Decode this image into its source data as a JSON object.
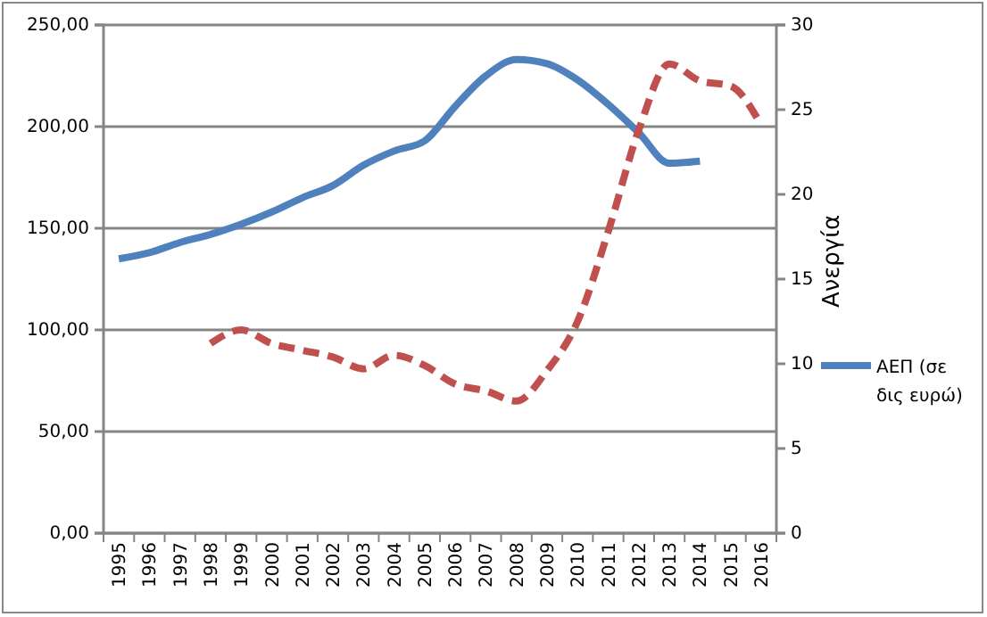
{
  "chart_data": {
    "type": "line",
    "y2label": "Ανεργία",
    "categories": [
      "1995",
      "1996",
      "1997",
      "1998",
      "1999",
      "2000",
      "2001",
      "2002",
      "2003",
      "2004",
      "2005",
      "2006",
      "2007",
      "2008",
      "2009",
      "2010",
      "2011",
      "2012",
      "2013",
      "2014",
      "2015",
      "2016"
    ],
    "series": [
      {
        "name": "ΑΕΠ (σε δις ευρώ)",
        "color": "#4f81bd",
        "line_style": "solid",
        "values": [
          135,
          138,
          143,
          147,
          152,
          158,
          165,
          171,
          181,
          188,
          193,
          210,
          225,
          233,
          231,
          223,
          211,
          197,
          182,
          183,
          null,
          null
        ]
      },
      {
        "color": "#c0504d",
        "axis": "y2",
        "line_style": "dashed",
        "values": [
          null,
          null,
          null,
          11.2,
          12.0,
          11.2,
          10.8,
          10.4,
          9.7,
          10.5,
          9.9,
          8.8,
          8.4,
          7.8,
          9.6,
          12.5,
          17.8,
          23.8,
          27.7,
          26.7,
          26.4,
          24.1
        ]
      }
    ],
    "ylim": [
      0,
      250
    ],
    "yticks": [
      {
        "value": 0,
        "label": "0,00"
      },
      {
        "value": 50,
        "label": "50,00"
      },
      {
        "value": 100,
        "label": "100,00"
      },
      {
        "value": 150,
        "label": "150,00"
      },
      {
        "value": 200,
        "label": "200,00"
      },
      {
        "value": 250,
        "label": "250,00"
      }
    ],
    "y2lim": [
      0,
      30
    ],
    "y2ticks": [
      0,
      5,
      10,
      15,
      20,
      25,
      30
    ],
    "grid": "y",
    "legend": "right"
  }
}
